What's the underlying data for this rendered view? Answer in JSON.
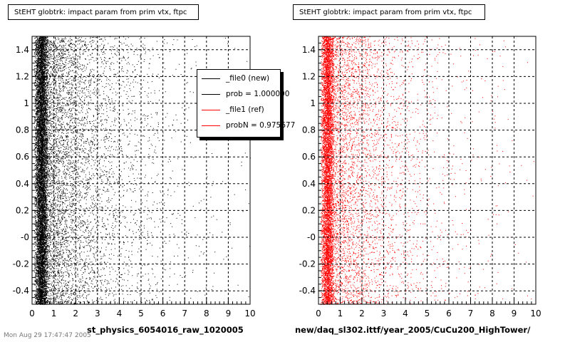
{
  "canvas": {
    "background": "#ffffff"
  },
  "footer_text": "Mon Aug 29 17:47:47 2005",
  "chart_data": [
    {
      "type": "scatter",
      "title": "StEHT globtrk: impact param from prim vtx, ftpc",
      "xlabel": "st_physics_6054016_raw_1020005",
      "ylabel": "",
      "xlim": [
        0,
        10
      ],
      "ylim": [
        -0.5,
        1.5
      ],
      "x_ticks": [
        "0",
        "1",
        "2",
        "3",
        "4",
        "5",
        "6",
        "7",
        "8",
        "9",
        "10"
      ],
      "y_ticks": [
        "-0.4",
        "-0.2",
        "-0",
        "0.2",
        "0.4",
        "0.6",
        "0.8",
        "1",
        "1.2",
        "1.4"
      ],
      "grid": true,
      "series_color": "#000000",
      "distribution": "points uniform in y from -0.5 to 1.5; density peaks near x=0.4 and decays roughly exponentially toward x=10",
      "legend": {
        "placement": "top-right",
        "entries": [
          {
            "label": "_file0 (new)",
            "color": "#000000"
          },
          {
            "label": "prob = 1.000000",
            "color": "#000000"
          },
          {
            "label": "_file1 (ref)",
            "color": "#ff0000"
          },
          {
            "label": "probN = 0.975677",
            "color": "#ff0000"
          }
        ]
      }
    },
    {
      "type": "scatter",
      "title": "StEHT globtrk: impact param from prim vtx, ftpc",
      "xlabel": "new/daq_sl302.ittf/year_2005/CuCu200_HighTower/",
      "ylabel": "",
      "xlim": [
        0,
        10
      ],
      "ylim": [
        -0.5,
        1.5
      ],
      "x_ticks": [
        "0",
        "1",
        "2",
        "3",
        "4",
        "5",
        "6",
        "7",
        "8",
        "9",
        "10"
      ],
      "y_ticks": [
        "-0.4",
        "-0.2",
        "-0",
        "0.2",
        "0.4",
        "0.6",
        "0.8",
        "1",
        "1.2",
        "1.4"
      ],
      "grid": true,
      "series_color": "#ff0000",
      "distribution": "points uniform in y from -0.5 to 1.5; density peaks near x=0.4 and decays roughly exponentially toward x=10"
    }
  ]
}
